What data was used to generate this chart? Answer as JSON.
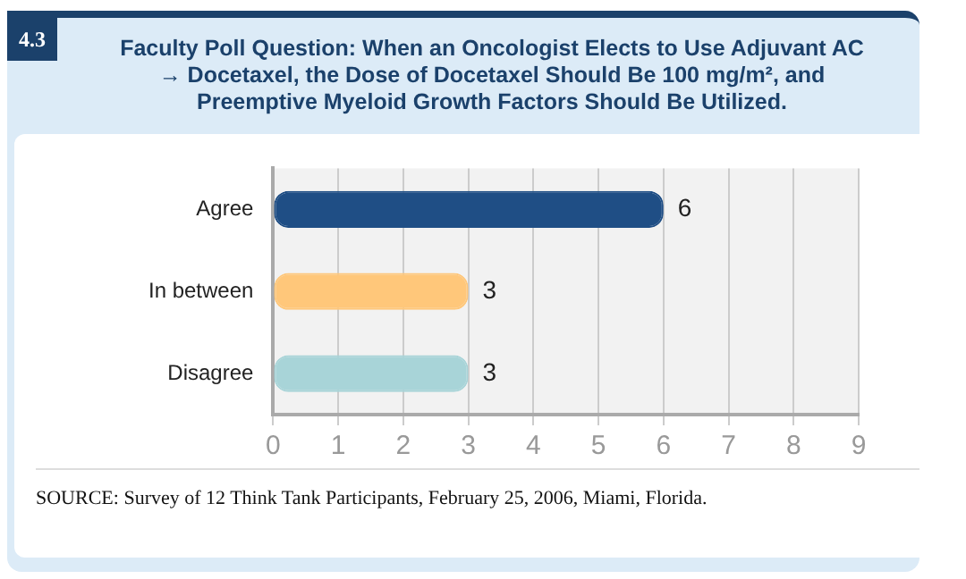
{
  "chart_data": {
    "type": "bar",
    "orientation": "horizontal",
    "title": "Faculty Poll Question: When an Oncologist Elects to Use Adjuvant AC → Docetaxel, the Dose of Docetaxel Should Be 100 mg/m², and Preemptive Myeloid Growth Factors Should Be Utilized.",
    "categories": [
      "Agree",
      "In between",
      "Disagree"
    ],
    "values": [
      6,
      3,
      3
    ],
    "colors": [
      "#1f4e85",
      "#ffc77a",
      "#a8d4d8"
    ],
    "xlim": [
      0,
      9
    ],
    "xticks": [
      0,
      1,
      2,
      3,
      4,
      5,
      6,
      7,
      8,
      9
    ],
    "grid": "x",
    "data_labels": true,
    "annotations": [
      "4.3",
      "SOURCE: Survey of 12 Think Tank Participants, February 25, 2006, Miami, Florida."
    ]
  }
}
